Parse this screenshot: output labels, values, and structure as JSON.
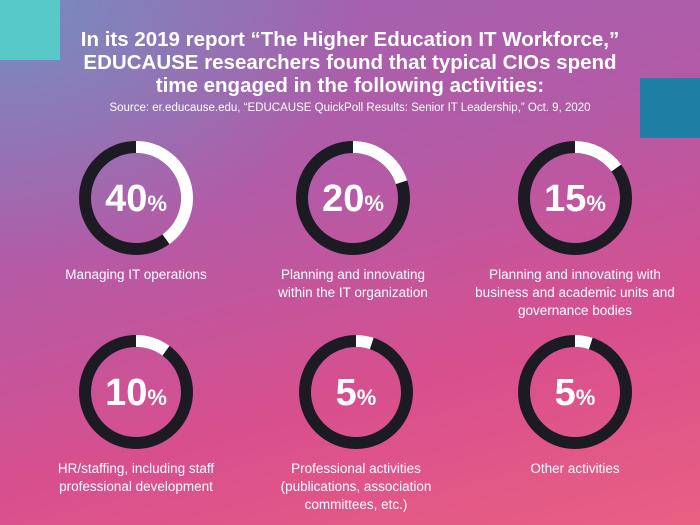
{
  "title_lines": [
    "In its 2019 report “The Higher Education IT Workforce,”",
    "EDUCAUSE researchers found that typical CIOs spend",
    "time engaged in the following activities:"
  ],
  "source": "Source: er.educause.edu, “EDUCAUSE QuickPoll Results: Senior IT Leadership,” Oct. 9, 2020",
  "colors": {
    "ring_track": "#1c1a22",
    "ring_fill": "#ffffff",
    "accent_teal": "#56c9c8",
    "accent_blue": "#1f7ea3"
  },
  "chart_data": {
    "type": "pie",
    "unit": "%",
    "categories": [
      "Managing IT operations",
      "Planning and innovating within the IT organization",
      "Planning and innovating with business and academic units and governance bodies",
      "HR/staffing, including staff professional development",
      "Professional activities (publications, association committees, etc.)",
      "Other activities"
    ],
    "values": [
      40,
      20,
      15,
      10,
      5,
      5
    ]
  },
  "items": [
    {
      "number": "40",
      "unit": "%",
      "label_lines": [
        "Managing IT operations"
      ]
    },
    {
      "number": "20",
      "unit": "%",
      "label_lines": [
        "Planning and innovating",
        "within the IT organization"
      ]
    },
    {
      "number": "15",
      "unit": "%",
      "label_lines": [
        "Planning and innovating with",
        "business and academic units and",
        "governance bodies"
      ]
    },
    {
      "number": "10",
      "unit": "%",
      "label_lines": [
        "HR/staffing, including staff",
        "professional development"
      ]
    },
    {
      "number": "5",
      "unit": "%",
      "label_lines": [
        "Professional activities",
        "(publications, association",
        "committees, etc.)"
      ]
    },
    {
      "number": "5",
      "unit": "%",
      "label_lines": [
        "Other activities"
      ]
    }
  ]
}
